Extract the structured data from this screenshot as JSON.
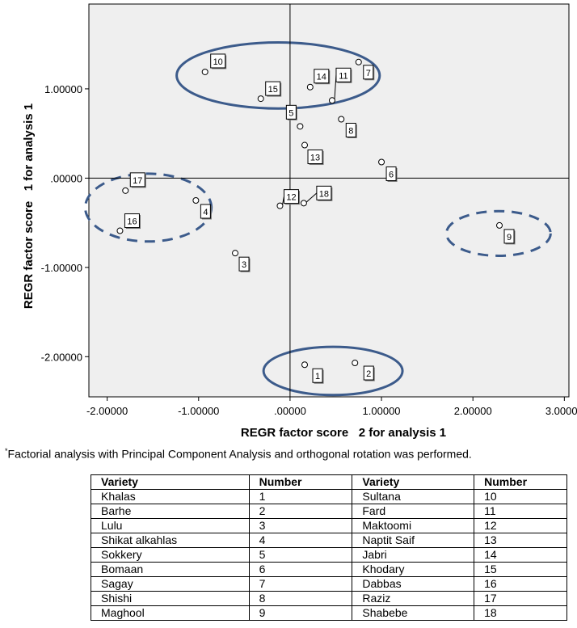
{
  "chart_data": {
    "type": "scatter",
    "xlabel": "REGR factor score   2 for analysis 1",
    "ylabel": "REGR factor score   1 for analysis 1",
    "xlim": [
      -2.2,
      3.05
    ],
    "ylim": [
      -2.45,
      1.95
    ],
    "x_ticks": [
      -2,
      -1,
      0,
      1,
      2,
      3
    ],
    "x_tick_labels": [
      "-2.00000",
      "-1.00000",
      ".00000",
      "1.00000",
      "2.00000",
      "3.00000"
    ],
    "y_ticks": [
      -2,
      -1,
      0,
      1
    ],
    "y_tick_labels": [
      "-2.00000",
      "-1.00000",
      ".00000",
      "1.00000"
    ],
    "reference_lines": {
      "x": 0,
      "y": 0
    },
    "grid": false,
    "points": [
      {
        "label": "1",
        "x": 0.16,
        "y": -2.09
      },
      {
        "label": "2",
        "x": 0.71,
        "y": -2.07
      },
      {
        "label": "3",
        "x": -0.6,
        "y": -0.84
      },
      {
        "label": "4",
        "x": -1.03,
        "y": -0.25
      },
      {
        "label": "5",
        "x": 0.11,
        "y": 0.58
      },
      {
        "label": "6",
        "x": 1.0,
        "y": 0.18
      },
      {
        "label": "7",
        "x": 0.75,
        "y": 1.3
      },
      {
        "label": "8",
        "x": 0.56,
        "y": 0.66
      },
      {
        "label": "9",
        "x": 2.29,
        "y": -0.53
      },
      {
        "label": "10",
        "x": -0.93,
        "y": 1.19
      },
      {
        "label": "11",
        "x": 0.46,
        "y": 0.87
      },
      {
        "label": "12",
        "x": -0.11,
        "y": -0.31
      },
      {
        "label": "13",
        "x": 0.16,
        "y": 0.37
      },
      {
        "label": "14",
        "x": 0.22,
        "y": 1.02
      },
      {
        "label": "15",
        "x": -0.32,
        "y": 0.89
      },
      {
        "label": "16",
        "x": -1.86,
        "y": -0.59
      },
      {
        "label": "17",
        "x": -1.8,
        "y": -0.14
      },
      {
        "label": "18",
        "x": 0.15,
        "y": -0.28
      }
    ],
    "groups": [
      {
        "style": "solid",
        "cx": -0.13,
        "cy": 1.15,
        "rx": 1.11,
        "ry": 0.37
      },
      {
        "style": "solid",
        "cx": 0.47,
        "cy": -2.16,
        "rx": 0.76,
        "ry": 0.27
      },
      {
        "style": "dashed",
        "cx": -1.55,
        "cy": -0.33,
        "rx": 0.69,
        "ry": 0.38
      },
      {
        "style": "dashed",
        "cx": 2.28,
        "cy": -0.62,
        "rx": 0.57,
        "ry": 0.25
      }
    ],
    "colors": {
      "plot_bg": "#efefef",
      "point_fill": "#ffffff",
      "point_stroke": "#000000",
      "group_stroke": "#3c5b8b"
    }
  },
  "footnote": {
    "marker": "*",
    "text": "Factorial analysis with Principal Component Analysis and orthogonal rotation was performed."
  },
  "table": {
    "headers": [
      "Variety",
      "Number",
      "Variety",
      "Number"
    ],
    "rows": [
      [
        "Khalas",
        "1",
        "Sultana",
        "10"
      ],
      [
        "Barhe",
        "2",
        "Fard",
        "11"
      ],
      [
        "Lulu",
        "3",
        "Maktoomi",
        "12"
      ],
      [
        "Shikat alkahlas",
        "4",
        "Naptit Saif",
        "13"
      ],
      [
        "Sokkery",
        "5",
        "Jabri",
        "14"
      ],
      [
        "Bomaan",
        "6",
        "Khodary",
        "15"
      ],
      [
        "Sagay",
        "7",
        "Dabbas",
        "16"
      ],
      [
        "Shishi",
        "8",
        "Raziz",
        "17"
      ],
      [
        "Maghool",
        "9",
        "Shabebe",
        "18"
      ]
    ]
  }
}
